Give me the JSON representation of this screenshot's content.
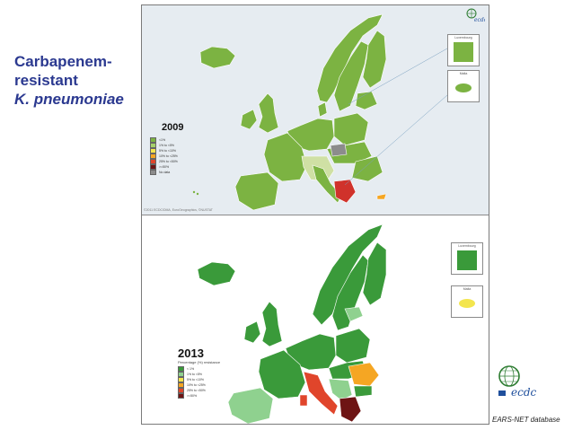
{
  "slide": {
    "title_line1": "Carbapenem-",
    "title_line2": "resistant",
    "title_line3": "K. pneumoniae"
  },
  "source_note": "EARS-NET database",
  "colors": {
    "title": "#2b3990",
    "lt1": "#7cb342",
    "c1to5": "#a5d06b",
    "c5to10": "#f3e54e",
    "c10to25": "#f5a623",
    "c25to50": "#e0452b",
    "gte50": "#6e1414",
    "nodata": "#8c8c8c",
    "dark_green": "#3a9a3a",
    "light_green": "#8fd18f"
  },
  "map_2009": {
    "year": "2009",
    "insets": [
      {
        "label": "Luxembourg"
      },
      {
        "label": "Malta"
      }
    ],
    "copyright": "©2011 ECDC/DMA, EuroGeographics, ©NUSTAT",
    "legend": [
      {
        "label": "<1%",
        "color": "#7cb342"
      },
      {
        "label": "1% to <5%",
        "color": "#a5d06b"
      },
      {
        "label": "5% to <10%",
        "color": "#f3e54e"
      },
      {
        "label": "10% to <25%",
        "color": "#f5a623"
      },
      {
        "label": "25% to <50%",
        "color": "#e0452b"
      },
      {
        "label": ">=50%",
        "color": "#6e1414"
      },
      {
        "label": "No data",
        "color": "#8c8c8c"
      }
    ]
  },
  "map_2013": {
    "year": "2013",
    "legend_title": "Percentage (%) resistance",
    "insets": [
      {
        "label": "Luxembourg"
      },
      {
        "label": "Malta"
      }
    ],
    "legend": [
      {
        "label": "< 1%",
        "color": "#3a9a3a"
      },
      {
        "label": "1% to <5%",
        "color": "#8fd18f"
      },
      {
        "label": "5% to <10%",
        "color": "#f3e54e"
      },
      {
        "label": "10% to <25%",
        "color": "#f5a623"
      },
      {
        "label": "25% to <50%",
        "color": "#e0452b"
      },
      {
        "label": ">=50%",
        "color": "#6e1414"
      }
    ]
  }
}
